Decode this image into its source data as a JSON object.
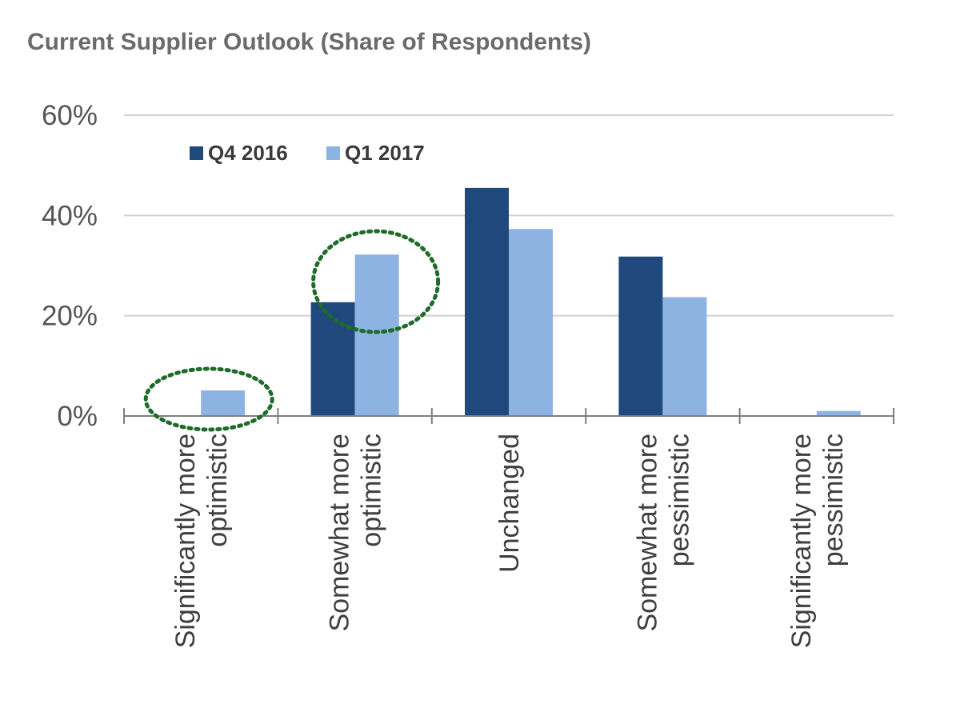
{
  "chart_data": {
    "type": "bar",
    "title": "Current Supplier Outlook (Share of Respondents)",
    "categories": [
      [
        "Significantly more",
        "optimistic"
      ],
      [
        "Somewhat more",
        "optimistic"
      ],
      [
        "Unchanged"
      ],
      [
        "Somewhat more",
        "pessimistic"
      ],
      [
        "Significantly more",
        "pessimistic"
      ]
    ],
    "series": [
      {
        "name": "Q4 2016",
        "color": "#1f497d",
        "values": [
          0,
          22.7,
          45.5,
          31.8,
          0
        ]
      },
      {
        "name": "Q1 2017",
        "color": "#8db3e2",
        "values": [
          5.1,
          32.2,
          37.3,
          23.7,
          1.0
        ]
      }
    ],
    "ylim": [
      0,
      60
    ],
    "yticks": [
      0,
      20,
      40,
      60
    ],
    "ytick_labels": [
      "0%",
      "20%",
      "40%",
      "60%"
    ],
    "grid": true,
    "legend_position": "top-left",
    "annotations": [
      {
        "type": "dotted-ellipse",
        "color": "#1e6b2a",
        "category_index": 0
      },
      {
        "type": "dotted-ellipse",
        "color": "#1e6b2a",
        "category_index": 1
      }
    ]
  }
}
